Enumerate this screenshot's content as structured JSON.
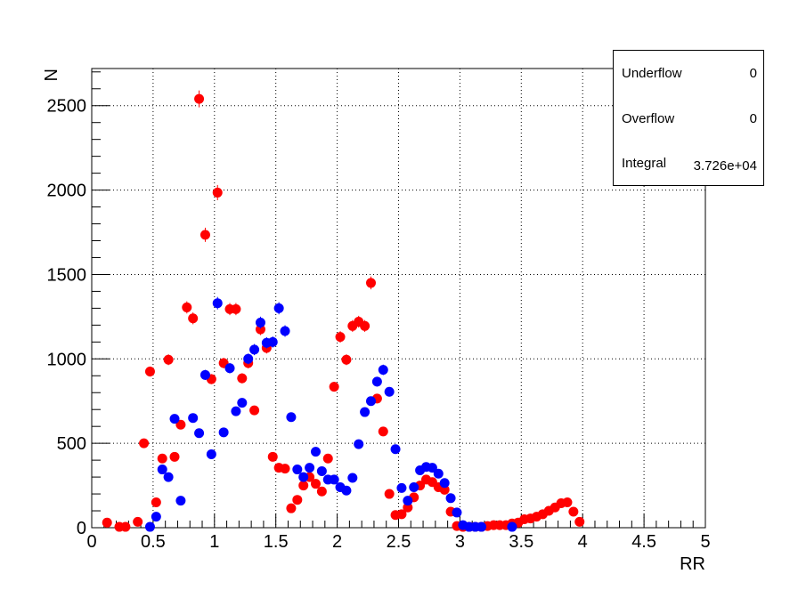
{
  "chart_data": {
    "type": "scatter",
    "title": "",
    "xlabel": "RR",
    "ylabel": "N",
    "xlim": [
      0,
      5
    ],
    "ylim": [
      0,
      2720
    ],
    "grid": true,
    "x_ticks": [
      "0",
      "0.5",
      "1",
      "1.5",
      "2",
      "2.5",
      "3",
      "3.5",
      "4",
      "4.5",
      "5"
    ],
    "y_ticks": [
      "0",
      "500",
      "1000",
      "1500",
      "2000",
      "2500"
    ],
    "colors": {
      "red_series": "#ff0000",
      "blue_series": "#0000ff"
    },
    "series": [
      {
        "color": "#ff0000",
        "x": [
          0.125,
          0.225,
          0.275,
          0.375,
          0.425,
          0.475,
          0.525,
          0.575,
          0.625,
          0.675,
          0.725,
          0.775,
          0.825,
          0.875,
          0.925,
          0.975,
          1.025,
          1.075,
          1.125,
          1.175,
          1.225,
          1.275,
          1.325,
          1.375,
          1.425,
          1.475,
          1.525,
          1.575,
          1.625,
          1.675,
          1.725,
          1.775,
          1.825,
          1.875,
          1.925,
          1.975,
          2.025,
          2.075,
          2.125,
          2.175,
          2.225,
          2.275,
          2.325,
          2.375,
          2.425,
          2.475,
          2.525,
          2.575,
          2.625,
          2.675,
          2.725,
          2.775,
          2.825,
          2.875,
          2.925,
          2.975,
          3.025,
          3.075,
          3.125,
          3.175,
          3.225,
          3.275,
          3.325,
          3.375,
          3.425,
          3.475,
          3.525,
          3.575,
          3.625,
          3.675,
          3.725,
          3.775,
          3.825,
          3.875,
          3.925,
          3.975
        ],
        "y": [
          30,
          5,
          5,
          35,
          500,
          925,
          150,
          410,
          995,
          420,
          610,
          1305,
          1240,
          2540,
          1735,
          880,
          1985,
          975,
          1295,
          1295,
          885,
          975,
          695,
          1175,
          1065,
          420,
          355,
          350,
          115,
          165,
          250,
          300,
          260,
          215,
          410,
          835,
          1130,
          995,
          1195,
          1220,
          1195,
          1450,
          765,
          570,
          200,
          75,
          80,
          120,
          180,
          250,
          285,
          270,
          240,
          225,
          95,
          10,
          5,
          5,
          5,
          5,
          10,
          15,
          15,
          15,
          25,
          30,
          50,
          55,
          65,
          80,
          100,
          120,
          145,
          150,
          95,
          35
        ],
        "err": [
          8,
          5,
          5,
          10,
          22,
          30,
          12,
          20,
          32,
          20,
          25,
          36,
          35,
          50,
          42,
          30,
          45,
          31,
          36,
          36,
          30,
          31,
          26,
          34,
          33,
          20,
          19,
          19,
          11,
          13,
          16,
          17,
          16,
          15,
          20,
          29,
          34,
          32,
          35,
          35,
          35,
          38,
          28,
          24,
          14,
          9,
          9,
          11,
          13,
          16,
          17,
          16,
          15,
          15,
          10,
          4,
          3,
          3,
          3,
          3,
          4,
          5,
          5,
          5,
          5,
          6,
          7,
          8,
          8,
          9,
          10,
          11,
          12,
          12,
          10,
          6
        ]
      },
      {
        "color": "#0000ff",
        "x": [
          0.475,
          0.525,
          0.575,
          0.625,
          0.675,
          0.725,
          0.825,
          0.875,
          0.925,
          0.975,
          1.025,
          1.075,
          1.125,
          1.175,
          1.225,
          1.275,
          1.325,
          1.375,
          1.425,
          1.475,
          1.525,
          1.575,
          1.625,
          1.675,
          1.725,
          1.775,
          1.825,
          1.875,
          1.925,
          1.975,
          2.025,
          2.075,
          2.125,
          2.175,
          2.225,
          2.275,
          2.325,
          2.375,
          2.425,
          2.475,
          2.525,
          2.575,
          2.625,
          2.675,
          2.725,
          2.775,
          2.825,
          2.875,
          2.925,
          2.975,
          3.025,
          3.075,
          3.125,
          3.175,
          3.425
        ],
        "y": [
          5,
          65,
          345,
          300,
          645,
          160,
          650,
          560,
          905,
          435,
          1330,
          565,
          945,
          690,
          740,
          1000,
          1055,
          1215,
          1095,
          1100,
          1300,
          1165,
          655,
          345,
          300,
          355,
          450,
          335,
          285,
          285,
          240,
          220,
          295,
          495,
          685,
          750,
          865,
          935,
          805,
          465,
          235,
          160,
          240,
          340,
          360,
          355,
          320,
          265,
          175,
          90,
          15,
          5,
          5,
          5,
          5
        ],
        "err": [
          3,
          9,
          19,
          17,
          25,
          13,
          26,
          24,
          30,
          21,
          37,
          24,
          31,
          26,
          27,
          32,
          33,
          35,
          33,
          33,
          36,
          34,
          26,
          19,
          17,
          19,
          21,
          18,
          17,
          17,
          16,
          15,
          17,
          22,
          26,
          27,
          29,
          31,
          28,
          22,
          15,
          13,
          16,
          18,
          19,
          19,
          18,
          16,
          13,
          10,
          4,
          3,
          3,
          3,
          3
        ]
      }
    ]
  },
  "stats": {
    "rows": [
      {
        "key": "Underflow",
        "value": "0"
      },
      {
        "key": "Overflow",
        "value": "0"
      },
      {
        "key": "Integral",
        "value": "3.726e+04"
      }
    ]
  }
}
